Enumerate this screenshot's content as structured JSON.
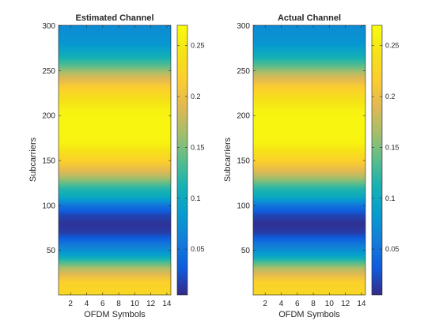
{
  "colormap": "parula",
  "chart_data": [
    {
      "type": "heatmap",
      "title": "Estimated Channel",
      "xlabel": "OFDM Symbols",
      "ylabel": "Subcarriers",
      "xlim": [
        0.5,
        14.5
      ],
      "ylim": [
        0.5,
        300.5
      ],
      "xticks": [
        2,
        4,
        6,
        8,
        10,
        12,
        14
      ],
      "yticks": [
        50,
        100,
        150,
        200,
        250,
        300
      ],
      "n_symbols": 14,
      "n_subcarriers": 300,
      "profile": {
        "subcarrier": [
          1,
          15,
          30,
          45,
          55,
          65,
          70,
          80,
          90,
          100,
          110,
          120,
          135,
          150,
          160,
          170,
          185,
          195,
          205,
          215,
          230,
          245,
          255,
          265,
          280,
          300
        ],
        "magnitude": [
          0.23,
          0.22,
          0.17,
          0.09,
          0.06,
          0.03,
          0.015,
          0.01,
          0.02,
          0.05,
          0.1,
          0.12,
          0.18,
          0.22,
          0.24,
          0.26,
          0.265,
          0.265,
          0.26,
          0.245,
          0.22,
          0.18,
          0.14,
          0.11,
          0.08,
          0.07
        ]
      },
      "colorbar": {
        "limits": [
          0.005,
          0.27
        ],
        "ticks": [
          0.05,
          0.1,
          0.15,
          0.2,
          0.25
        ],
        "ticklabels": [
          "0.05",
          "0.1",
          "0.15",
          "0.2",
          "0.25"
        ]
      }
    },
    {
      "type": "heatmap",
      "title": "Actual Channel",
      "xlabel": "OFDM Symbols",
      "ylabel": "Subcarriers",
      "xlim": [
        0.5,
        14.5
      ],
      "ylim": [
        0.5,
        300.5
      ],
      "xticks": [
        2,
        4,
        6,
        8,
        10,
        12,
        14
      ],
      "yticks": [
        50,
        100,
        150,
        200,
        250,
        300
      ],
      "n_symbols": 14,
      "n_subcarriers": 300,
      "profile": {
        "subcarrier": [
          1,
          15,
          30,
          45,
          55,
          65,
          70,
          80,
          90,
          100,
          110,
          120,
          135,
          150,
          160,
          170,
          185,
          195,
          205,
          215,
          230,
          245,
          255,
          265,
          280,
          300
        ],
        "magnitude": [
          0.23,
          0.22,
          0.17,
          0.09,
          0.06,
          0.03,
          0.015,
          0.008,
          0.02,
          0.05,
          0.1,
          0.12,
          0.18,
          0.22,
          0.24,
          0.26,
          0.265,
          0.265,
          0.26,
          0.245,
          0.22,
          0.18,
          0.14,
          0.11,
          0.08,
          0.07
        ]
      },
      "colorbar": {
        "limits": [
          0.005,
          0.27
        ],
        "ticks": [
          0.05,
          0.1,
          0.15,
          0.2,
          0.25
        ],
        "ticklabels": [
          "0.05",
          "0.1",
          "0.15",
          "0.2",
          "0.25"
        ]
      }
    }
  ]
}
